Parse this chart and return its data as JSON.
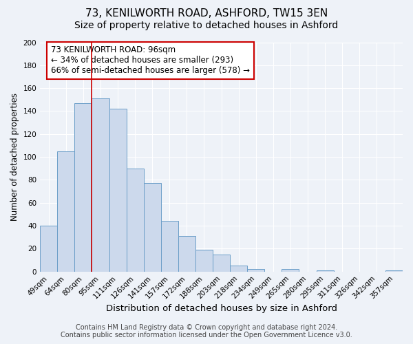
{
  "title": "73, KENILWORTH ROAD, ASHFORD, TW15 3EN",
  "subtitle": "Size of property relative to detached houses in Ashford",
  "xlabel": "Distribution of detached houses by size in Ashford",
  "ylabel": "Number of detached properties",
  "bar_labels": [
    "49sqm",
    "64sqm",
    "80sqm",
    "95sqm",
    "111sqm",
    "126sqm",
    "141sqm",
    "157sqm",
    "172sqm",
    "188sqm",
    "203sqm",
    "218sqm",
    "234sqm",
    "249sqm",
    "265sqm",
    "280sqm",
    "295sqm",
    "311sqm",
    "326sqm",
    "342sqm",
    "357sqm"
  ],
  "bar_values": [
    40,
    105,
    147,
    151,
    142,
    90,
    77,
    44,
    31,
    19,
    15,
    5,
    2,
    0,
    2,
    0,
    1,
    0,
    0,
    0,
    1
  ],
  "bar_color": "#ccd9ec",
  "bar_edge_color": "#6b9ec8",
  "annotation_box_text": "73 KENILWORTH ROAD: 96sqm\n← 34% of detached houses are smaller (293)\n66% of semi-detached houses are larger (578) →",
  "annotation_box_edge_color": "#cc0000",
  "vline_x": 3,
  "vline_color": "#cc0000",
  "ylim": [
    0,
    200
  ],
  "yticks": [
    0,
    20,
    40,
    60,
    80,
    100,
    120,
    140,
    160,
    180,
    200
  ],
  "footer_line1": "Contains HM Land Registry data © Crown copyright and database right 2024.",
  "footer_line2": "Contains public sector information licensed under the Open Government Licence v3.0.",
  "bg_color": "#eef2f8",
  "plot_bg_color": "#eef2f8",
  "title_fontsize": 11,
  "subtitle_fontsize": 10,
  "xlabel_fontsize": 9.5,
  "ylabel_fontsize": 8.5,
  "tick_fontsize": 7.5,
  "annotation_fontsize": 8.5,
  "footer_fontsize": 7
}
